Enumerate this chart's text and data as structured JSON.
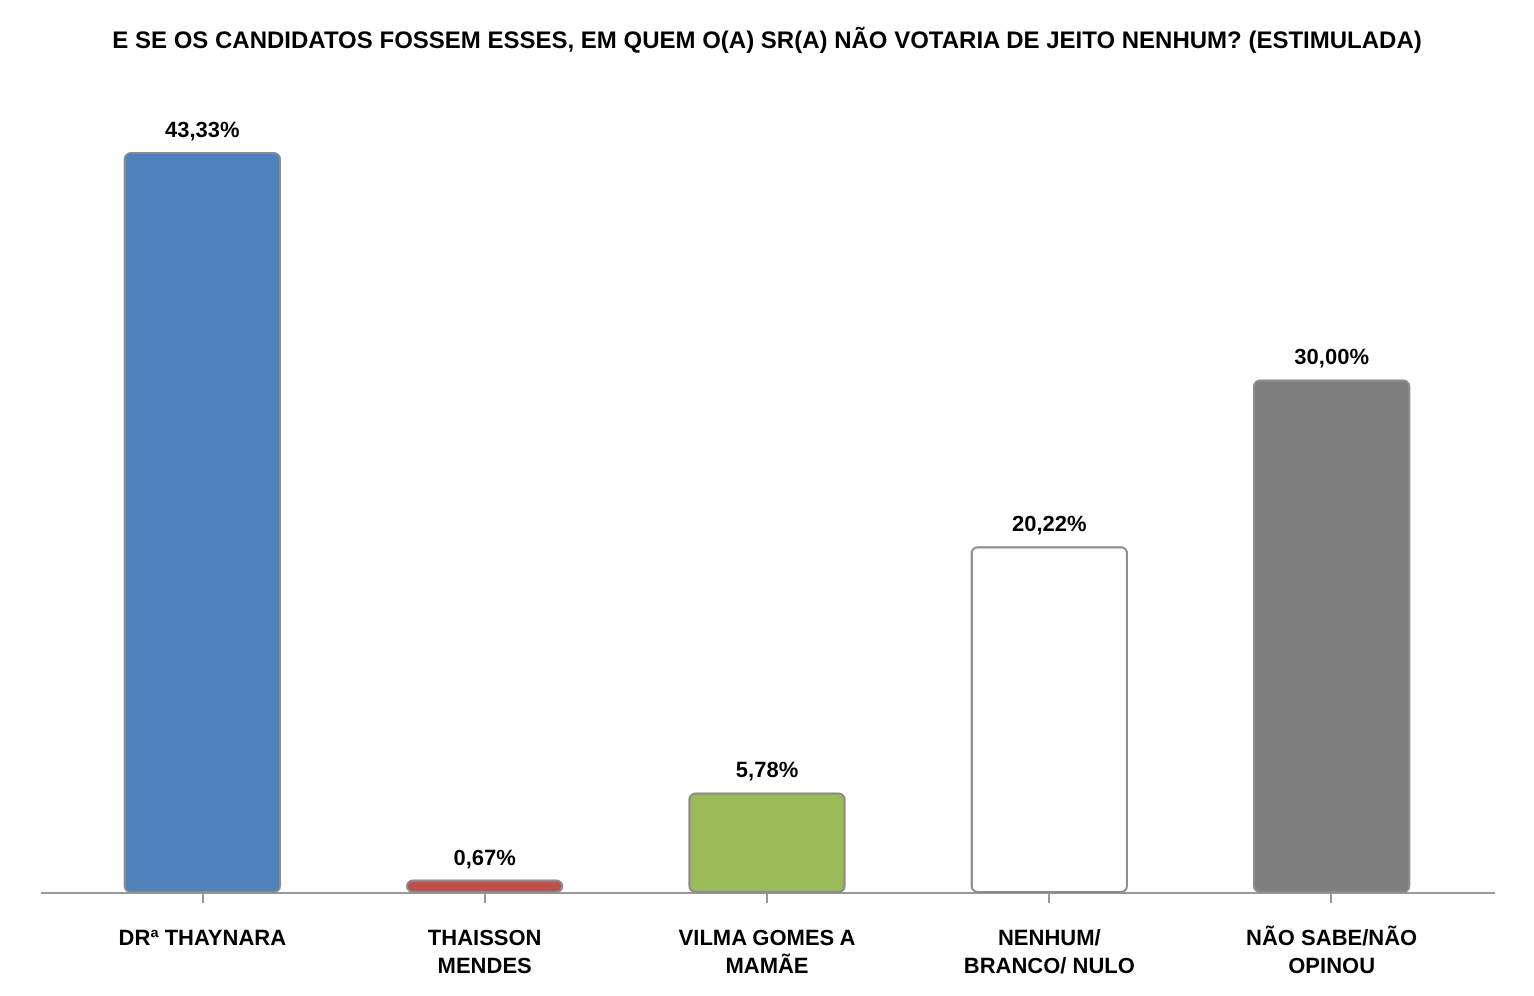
{
  "chart_data": {
    "type": "bar",
    "title": "E SE OS CANDIDATOS FOSSEM ESSES, EM QUEM O(A) SR(A) NÃO VOTARIA DE JEITO NENHUM? (ESTIMULADA)",
    "categories": [
      "DRª THAYNARA",
      "THAISSON MENDES",
      "VILMA GOMES A MAMÃE",
      "NENHUM/ BRANCO/ NULO",
      "NÃO SABE/NÃO OPINOU"
    ],
    "values": [
      43.33,
      0.67,
      5.78,
      20.22,
      30.0
    ],
    "colors": [
      "#4f81bd",
      "#c0504d",
      "#9bbb59",
      "#ffffff",
      "#7f7f7f"
    ],
    "value_labels": [
      "43,33%",
      "0,67%",
      "5,78%",
      "20,22%",
      "30,00%"
    ],
    "tick_labels": "x"
  }
}
